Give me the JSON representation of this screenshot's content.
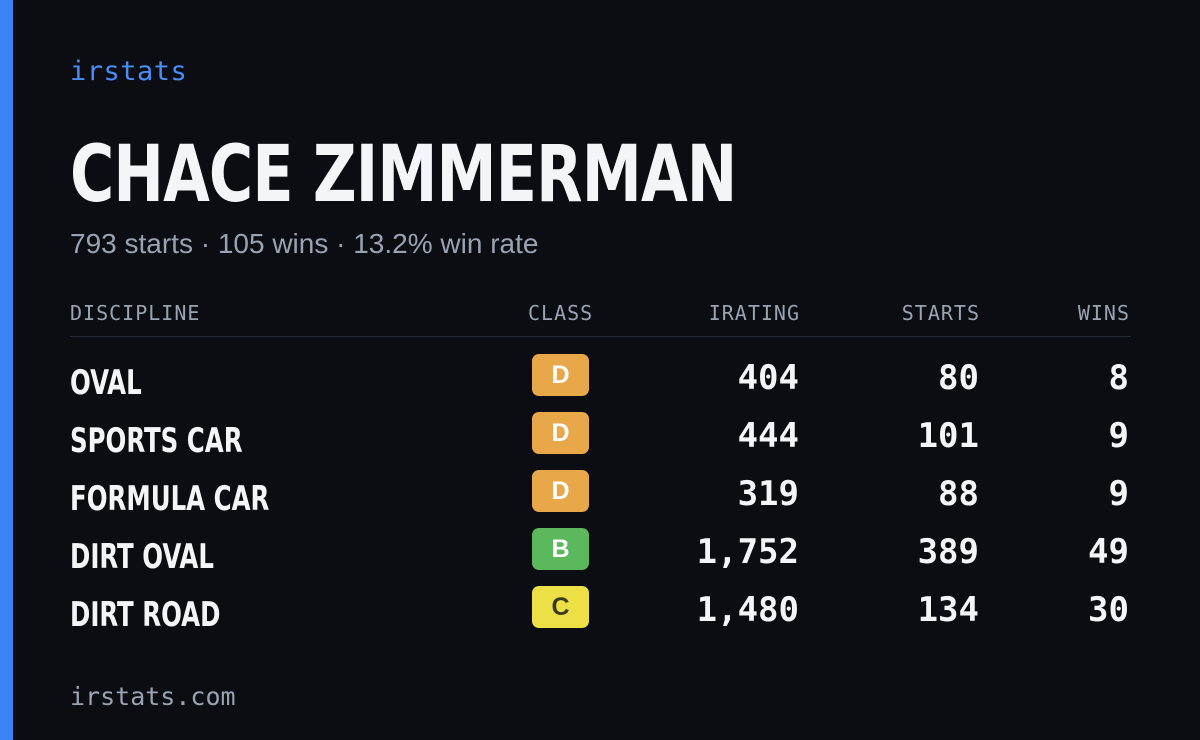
{
  "brand": {
    "label": "irstats"
  },
  "driver": {
    "name": "CHACE ZIMMERMAN",
    "summary": "793 starts · 105 wins · 13.2% win rate"
  },
  "table": {
    "headers": {
      "discipline": "DISCIPLINE",
      "class": "CLASS",
      "irating": "IRATING",
      "starts": "STARTS",
      "wins": "WINS"
    },
    "rows": [
      {
        "discipline": "OVAL",
        "class": "D",
        "class_color": "#e8a84a",
        "irating": "404",
        "starts": "80",
        "wins": "8"
      },
      {
        "discipline": "SPORTS CAR",
        "class": "D",
        "class_color": "#e8a84a",
        "irating": "444",
        "starts": "101",
        "wins": "9"
      },
      {
        "discipline": "FORMULA CAR",
        "class": "D",
        "class_color": "#e8a84a",
        "irating": "319",
        "starts": "88",
        "wins": "9"
      },
      {
        "discipline": "DIRT OVAL",
        "class": "B",
        "class_color": "#5cb85c",
        "irating": "1,752",
        "starts": "389",
        "wins": "49"
      },
      {
        "discipline": "DIRT ROAD",
        "class": "C",
        "class_color": "#ede046",
        "class_text_color": "#3a3a1a",
        "irating": "1,480",
        "starts": "134",
        "wins": "30"
      }
    ]
  },
  "footer": {
    "domain": "irstats.com"
  },
  "colors": {
    "accent": "#3b82f6",
    "background": "#0b0d13"
  }
}
